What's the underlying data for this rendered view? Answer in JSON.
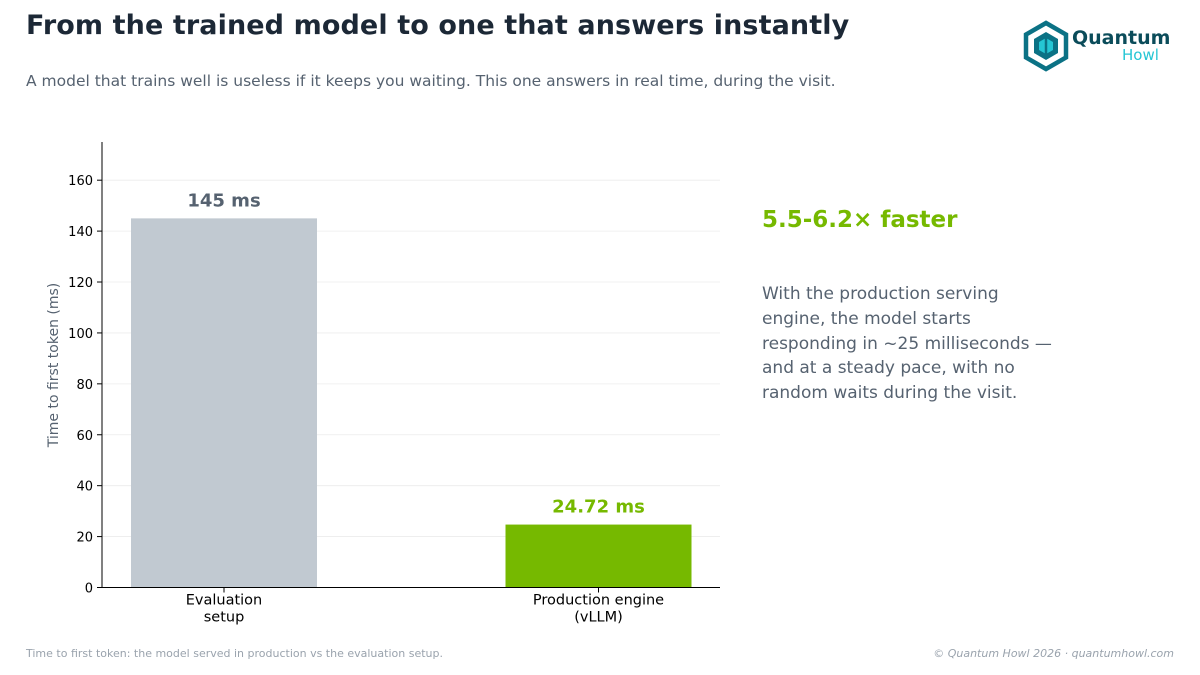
{
  "header": {
    "title": "From the trained model to one that answers instantly",
    "subtitle": "A model that trains well is useless if it keeps you waiting. This one answers in real time, during the visit."
  },
  "logo": {
    "word1": "Quantum",
    "word2": "Howl",
    "icon": "hexagon-logo-icon",
    "colors": {
      "dark": "#0b7285",
      "light": "#25c6d4",
      "text": "#0b4c5a"
    }
  },
  "chart_data": {
    "type": "bar",
    "categories": [
      [
        "Evaluation",
        "setup"
      ],
      [
        "Production engine",
        "(vLLM)"
      ]
    ],
    "values": [
      145,
      24.72
    ],
    "value_labels": [
      "145 ms",
      "24.72 ms"
    ],
    "colors": [
      "#c1c9d1",
      "#76b900"
    ],
    "label_colors": [
      "#566270",
      "#76b900"
    ],
    "xlabel": "",
    "ylabel": "Time to first token (ms)",
    "ylim": [
      0,
      175
    ],
    "yticks": [
      0,
      20,
      40,
      60,
      80,
      100,
      120,
      140,
      160
    ],
    "grid": true
  },
  "side": {
    "headline": "5.5-6.2× faster",
    "body": "With the production serving engine, the model starts responding in ~25 milliseconds — and at a steady pace, with no random waits during the visit."
  },
  "footer": {
    "caption": "Time to first token: the model served in production vs the evaluation setup.",
    "copyright": "© Quantum Howl 2026 · quantumhowl.com"
  }
}
